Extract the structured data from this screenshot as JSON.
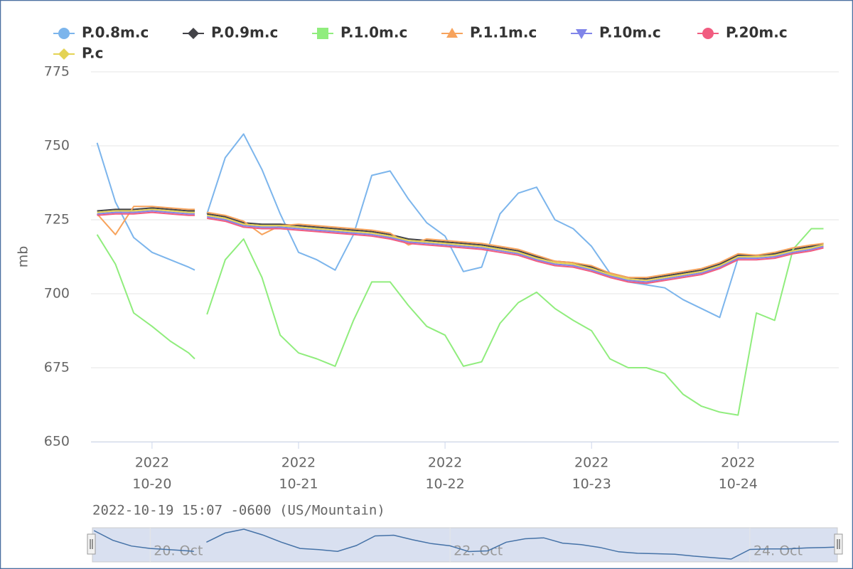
{
  "chart_data": {
    "type": "line",
    "x": [
      "2022-10-19 15:00",
      "2022-10-19 18:00",
      "2022-10-19 21:00",
      "2022-10-20 00:00",
      "2022-10-20 03:00",
      "2022-10-20 06:00",
      "2022-10-20 07:00",
      "2022-10-20 08:00",
      "2022-10-20 09:00",
      "2022-10-20 12:00",
      "2022-10-20 15:00",
      "2022-10-20 18:00",
      "2022-10-20 21:00",
      "2022-10-21 00:00",
      "2022-10-21 03:00",
      "2022-10-21 06:00",
      "2022-10-21 09:00",
      "2022-10-21 12:00",
      "2022-10-21 15:00",
      "2022-10-21 18:00",
      "2022-10-21 21:00",
      "2022-10-22 00:00",
      "2022-10-22 03:00",
      "2022-10-22 06:00",
      "2022-10-22 09:00",
      "2022-10-22 12:00",
      "2022-10-22 15:00",
      "2022-10-22 18:00",
      "2022-10-22 21:00",
      "2022-10-23 00:00",
      "2022-10-23 03:00",
      "2022-10-23 06:00",
      "2022-10-23 09:00",
      "2022-10-23 12:00",
      "2022-10-23 15:00",
      "2022-10-23 18:00",
      "2022-10-23 21:00",
      "2022-10-24 00:00",
      "2022-10-24 03:00",
      "2022-10-24 06:00",
      "2022-10-24 09:00",
      "2022-10-24 12:00",
      "2022-10-24 14:00"
    ],
    "series": [
      {
        "name": "P.0.8m.c",
        "color": "#7cb5ec",
        "marker": "circle",
        "values": [
          751,
          731,
          719,
          714,
          711.5,
          709,
          708,
          null,
          727,
          746,
          754,
          742,
          727,
          714,
          711.5,
          708,
          720,
          740,
          741.5,
          732,
          724,
          719.5,
          707.5,
          709,
          727,
          734,
          736,
          725,
          722,
          716,
          707,
          704,
          703,
          702,
          698,
          695,
          692,
          712,
          713,
          713,
          715,
          716,
          717
        ]
      },
      {
        "name": "P.0.9m.c",
        "color": "#434348",
        "marker": "diamond",
        "values": [
          728,
          728.5,
          728.5,
          729,
          728.5,
          728,
          728,
          null,
          727,
          726,
          724,
          723.5,
          723.5,
          723,
          722.5,
          722,
          721.5,
          721,
          720,
          718.5,
          718,
          717.5,
          717,
          716.5,
          715.5,
          714.5,
          712.5,
          711,
          710.5,
          709,
          707,
          705.5,
          705,
          706,
          707,
          708,
          710,
          713,
          713,
          713.5,
          715,
          716,
          717
        ]
      },
      {
        "name": "P.1.0m.c",
        "color": "#90ed7d",
        "marker": "square",
        "values": [
          720,
          710,
          693.5,
          689,
          684,
          680,
          678,
          null,
          693,
          711.5,
          718.5,
          705.5,
          686,
          680,
          678,
          675.5,
          691,
          704,
          704,
          696,
          689,
          686,
          675.5,
          677,
          690,
          697,
          700.5,
          695,
          691,
          687.5,
          678,
          675,
          675,
          673,
          666,
          662,
          660,
          659,
          693.5,
          691,
          715,
          722,
          722
        ]
      },
      {
        "name": "P.1.1m.c",
        "color": "#f7a35c",
        "marker": "triangle",
        "values": [
          727,
          720,
          729.5,
          729.5,
          729,
          728.5,
          728.5,
          null,
          727.5,
          726.5,
          724.5,
          720,
          723,
          723.5,
          723,
          722.5,
          722,
          721.5,
          720.5,
          716.5,
          718.5,
          718,
          717.5,
          717,
          716,
          715,
          713,
          711,
          710.5,
          709.5,
          707,
          705.5,
          705.5,
          706.5,
          707.5,
          708.5,
          710.5,
          713.5,
          713,
          714,
          715.5,
          716.5,
          717
        ]
      },
      {
        "name": "P.10m.c",
        "color": "#8085e9",
        "marker": "triangle-down",
        "values": [
          727,
          727.5,
          727.5,
          728,
          727.5,
          727,
          727,
          null,
          726,
          725,
          723,
          722.5,
          722.5,
          722,
          721.5,
          721,
          720.5,
          720,
          719,
          717.5,
          717,
          716.5,
          716,
          715.5,
          714.5,
          713.5,
          711.5,
          710,
          709.5,
          708,
          706,
          704.5,
          704,
          705,
          706,
          707,
          709,
          712,
          712,
          712.5,
          714,
          715,
          716
        ]
      },
      {
        "name": "P.20m.c",
        "color": "#f15c80",
        "marker": "circle",
        "values": [
          726.5,
          727,
          727,
          727.5,
          727,
          726.5,
          726.5,
          null,
          725.5,
          724.5,
          722.5,
          722,
          722,
          721.5,
          721,
          720.5,
          720,
          719.5,
          718.5,
          717,
          716.5,
          716,
          715.5,
          715,
          714,
          713,
          711,
          709.5,
          709,
          707.5,
          705.5,
          704,
          703.5,
          704.5,
          705.5,
          706.5,
          708.5,
          711.5,
          711.5,
          712,
          713.5,
          714.5,
          715.5
        ]
      },
      {
        "name": "P.c",
        "color": "#e4d354",
        "marker": "diamond",
        "values": [
          727.5,
          728,
          728,
          728.5,
          728,
          727.5,
          727.5,
          null,
          726.5,
          725.5,
          723.5,
          723,
          723,
          722.5,
          722,
          721.5,
          721,
          720.5,
          719.5,
          718,
          717.5,
          717,
          716.5,
          716,
          715,
          714,
          712,
          710.5,
          710,
          708.5,
          706.5,
          705,
          704.5,
          705.5,
          706.5,
          707.5,
          709.5,
          712.5,
          712.5,
          713,
          714.5,
          715.5,
          716.5
        ]
      }
    ],
    "y_label": "mb",
    "ylim": [
      650,
      775
    ],
    "yticks": [
      650,
      675,
      700,
      725,
      750,
      775
    ],
    "grid": true,
    "xlim": [
      "2022-10-19 14:00",
      "2022-10-24 16:30"
    ],
    "xticks": [
      {
        "value": "2022-10-20 00:00",
        "label": [
          "2022",
          "10-20"
        ]
      },
      {
        "value": "2022-10-21 00:00",
        "label": [
          "2022",
          "10-21"
        ]
      },
      {
        "value": "2022-10-22 00:00",
        "label": [
          "2022",
          "10-22"
        ]
      },
      {
        "value": "2022-10-23 00:00",
        "label": [
          "2022",
          "10-23"
        ]
      },
      {
        "value": "2022-10-24 00:00",
        "label": [
          "2022",
          "10-24"
        ]
      }
    ],
    "legend": "top",
    "footnote": "2022-10-19 15:07 -0600 (US/Mountain)",
    "navigator": {
      "xlim": [
        "2022-10-19 14:45",
        "2022-10-24 14:00"
      ],
      "xticks": [
        {
          "value": "2022-10-20 00:00",
          "label": "20. Oct"
        },
        {
          "value": "2022-10-22 00:00",
          "label": "22. Oct"
        },
        {
          "value": "2022-10-24 00:00",
          "label": "24. Oct"
        }
      ]
    }
  }
}
